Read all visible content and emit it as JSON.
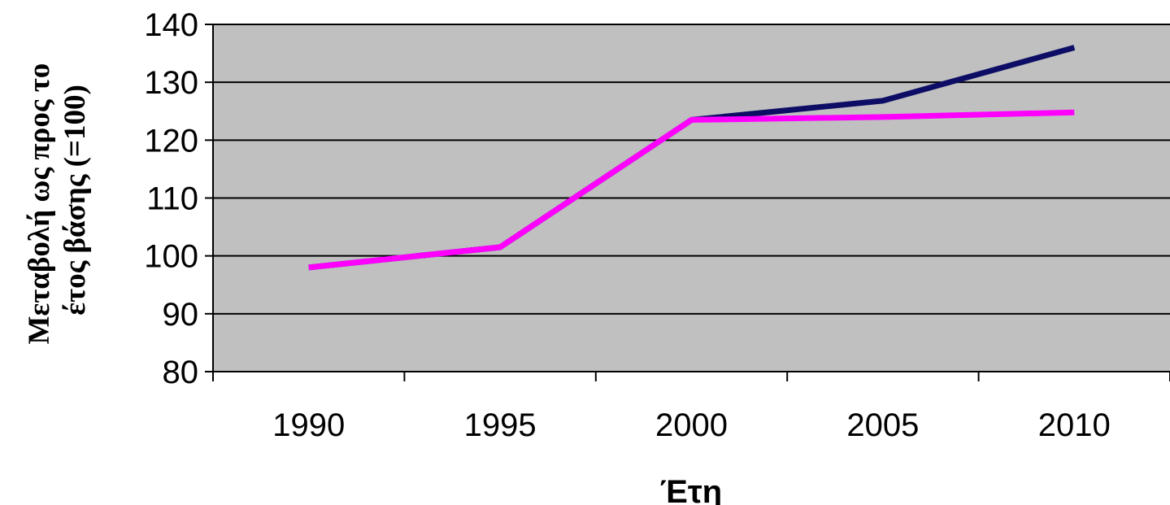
{
  "chart_data": {
    "type": "line",
    "x": [
      "1990",
      "1995",
      "2000",
      "2005",
      "2010"
    ],
    "series": [
      {
        "values": [
          98,
          101.5,
          123.5,
          126.8,
          136
        ],
        "color": "#0d0d66"
      },
      {
        "values": [
          98,
          101.5,
          123.5,
          124,
          124.8
        ],
        "color": "#ff00ff"
      }
    ],
    "title": "",
    "xlabel": "Έτη",
    "ylabel_lines": [
      "Μεταβολή ως προς το",
      "έτος βάσης (=100)"
    ],
    "ylim": [
      80,
      140
    ],
    "yticks": [
      80,
      90,
      100,
      110,
      120,
      130,
      140
    ],
    "grid": true,
    "legend": "none",
    "plot_background": "#c0c0c0"
  }
}
